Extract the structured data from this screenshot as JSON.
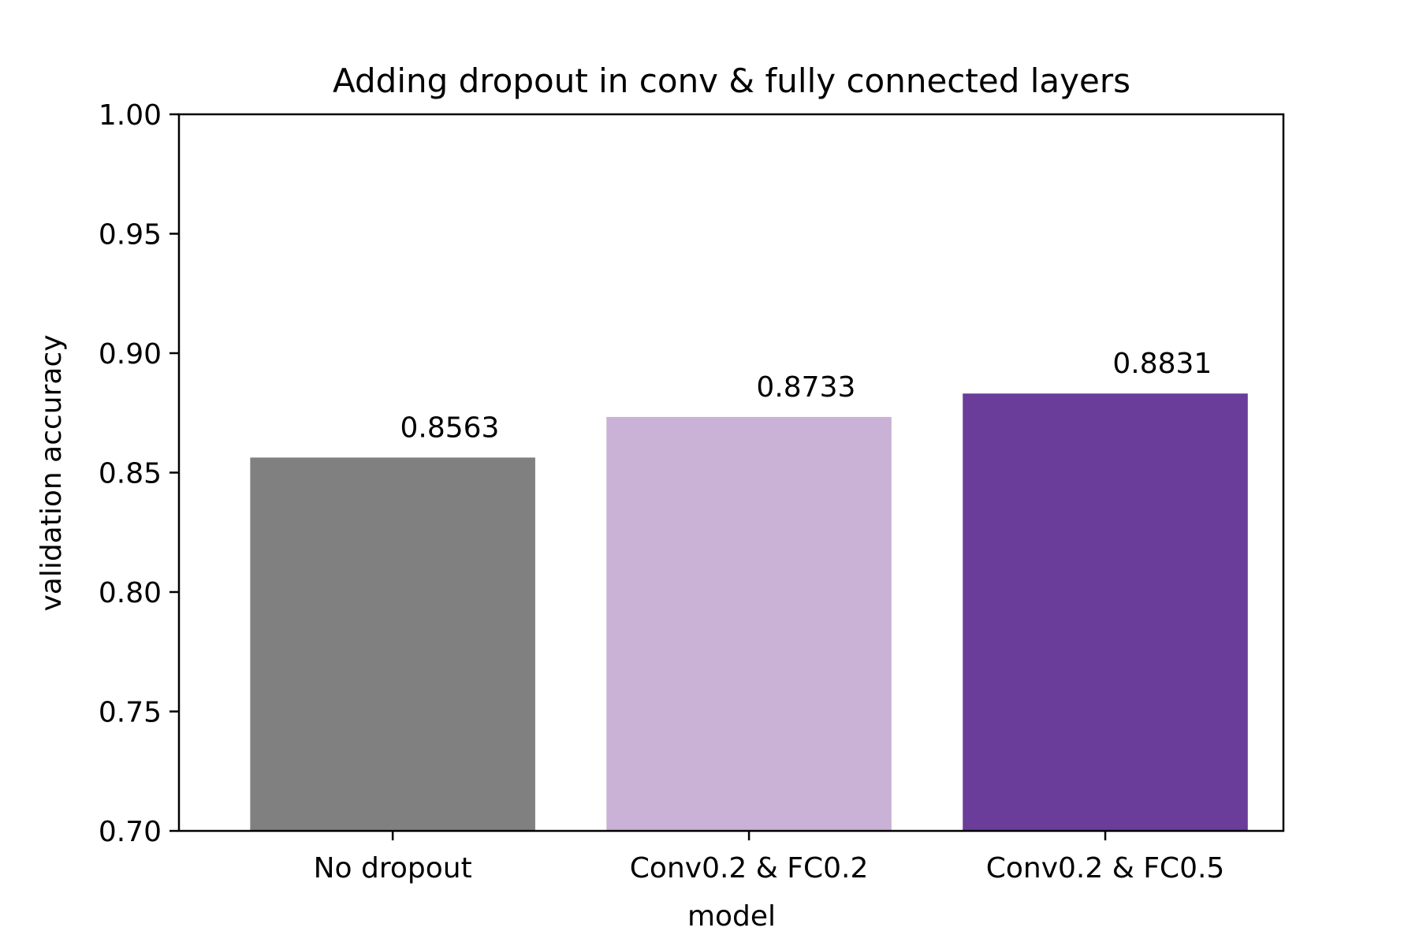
{
  "chart_data": {
    "type": "bar",
    "title": "Adding dropout in conv & fully connected layers",
    "xlabel": "model",
    "ylabel": "validation accuracy",
    "categories": [
      "No dropout",
      "Conv0.2 & FC0.2",
      "Conv0.2 & FC0.5"
    ],
    "values": [
      0.8563,
      0.8733,
      0.8831
    ],
    "value_labels": [
      "0.8563",
      "0.8733",
      "0.8831"
    ],
    "bar_colors": [
      "#808080",
      "#c9b2d6",
      "#6a3d9a"
    ],
    "ylim": [
      0.7,
      1.0
    ],
    "yticks": [
      0.7,
      0.75,
      0.8,
      0.85,
      0.9,
      0.95,
      1.0
    ],
    "ytick_labels": [
      "0.70",
      "0.75",
      "0.80",
      "0.85",
      "0.90",
      "0.95",
      "1.00"
    ],
    "grid": false,
    "legend": "none"
  }
}
